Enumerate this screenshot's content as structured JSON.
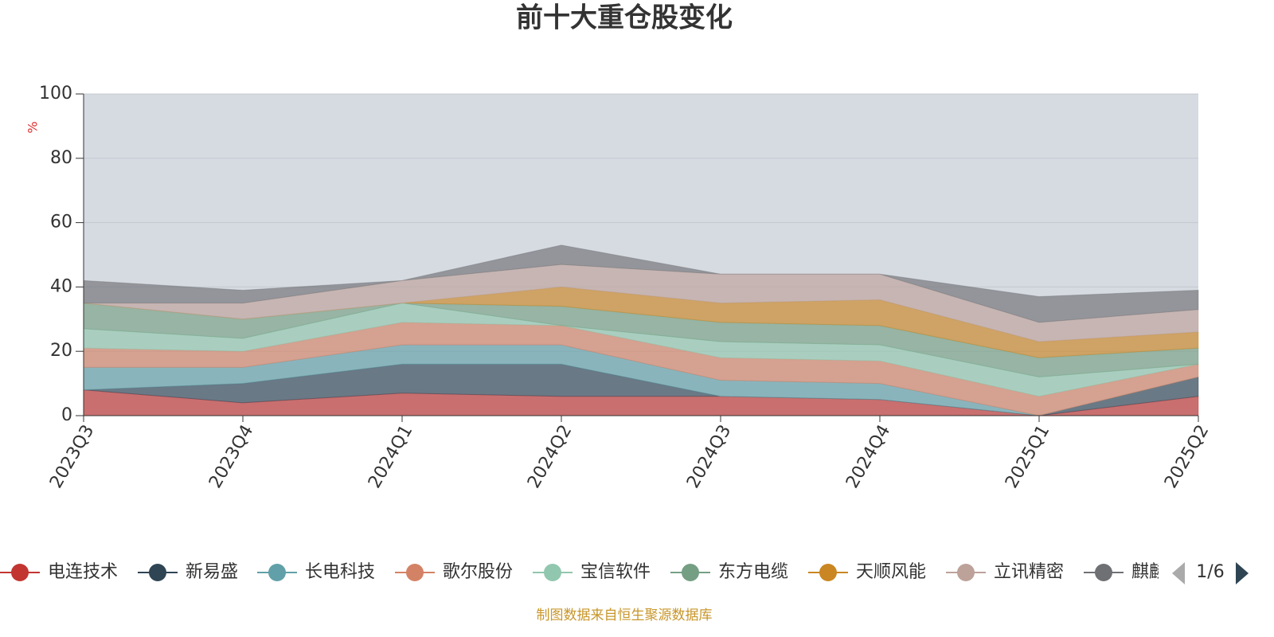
{
  "chart_data": {
    "type": "stacked-area",
    "title": "前十大重仓股变化",
    "y_unit": "%",
    "categories": [
      "2023Q3",
      "2023Q4",
      "2024Q1",
      "2024Q2",
      "2024Q3",
      "2024Q4",
      "2025Q1",
      "2025Q2"
    ],
    "series": [
      {
        "name": "电连技术",
        "color": "#c23531",
        "values": [
          8,
          4,
          7,
          6,
          6,
          5,
          0,
          6
        ]
      },
      {
        "name": "新易盛",
        "color": "#2f4554",
        "values": [
          0,
          6,
          9,
          10,
          0,
          0,
          0,
          6
        ]
      },
      {
        "name": "长电科技",
        "color": "#61a0a8",
        "values": [
          7,
          5,
          6,
          6,
          5,
          5,
          0,
          0
        ]
      },
      {
        "name": "歌尔股份",
        "color": "#d48265",
        "values": [
          6,
          5,
          7,
          6,
          7,
          7,
          6,
          4
        ]
      },
      {
        "name": "宝信软件",
        "color": "#91c7ae",
        "values": [
          6,
          4,
          6,
          0,
          5,
          5,
          6,
          0
        ]
      },
      {
        "name": "东方电缆",
        "color": "#749f83",
        "values": [
          8,
          6,
          0,
          6,
          6,
          6,
          6,
          5
        ]
      },
      {
        "name": "天顺风能",
        "color": "#ca8622",
        "values": [
          0,
          0,
          0,
          6,
          6,
          8,
          5,
          5
        ]
      },
      {
        "name": "立讯精密",
        "color": "#bda29a",
        "values": [
          0,
          5,
          7,
          7,
          9,
          8,
          6,
          7
        ]
      },
      {
        "name": "麒麟",
        "color": "#6e7074",
        "values": [
          7,
          4,
          0,
          6,
          0,
          0,
          8,
          6
        ]
      }
    ],
    "ylim": [
      0,
      100
    ],
    "yticks": [
      0,
      20,
      40,
      60,
      80,
      100
    ],
    "grid": true,
    "legend_page": "1/6",
    "source": "制图数据来自恒生聚源数据库"
  }
}
